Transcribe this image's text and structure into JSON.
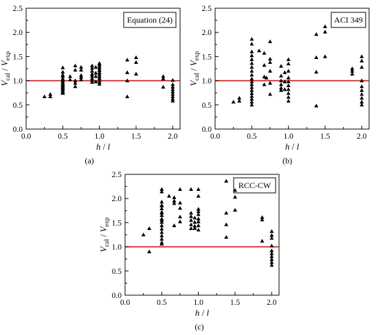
{
  "chart_data": [
    {
      "panel": "(a)",
      "type": "scatter",
      "legend_label": "Equation (24)",
      "xlabel": "h / l",
      "ylabel": "V_cal / V_exp",
      "ylabel_parts": {
        "v1": "V",
        "s1": "cal",
        "slash": " / ",
        "v2": "V",
        "s2": "exp"
      },
      "xlabel_parts": {
        "h": "h",
        "slash": " / ",
        "l": "l"
      },
      "xlim": [
        0,
        2.1
      ],
      "ylim": [
        0,
        2.5
      ],
      "xticks": [
        "0.0",
        "0.5",
        "1.0",
        "1.5",
        "2.0"
      ],
      "yticks": [
        "0.0",
        "0.5",
        "1.0",
        "1.5",
        "2.0",
        "2.5"
      ],
      "reference_line": {
        "y": 1.0,
        "color": "#ff0000"
      },
      "marker": "triangle",
      "marker_color": "#000000",
      "x": [
        0.25,
        0.33,
        0.33,
        0.5,
        0.5,
        0.5,
        0.5,
        0.5,
        0.5,
        0.5,
        0.5,
        0.5,
        0.5,
        0.5,
        0.5,
        0.5,
        0.5,
        0.5,
        0.5,
        0.5,
        0.5,
        0.6,
        0.6,
        0.67,
        0.67,
        0.67,
        0.67,
        0.67,
        0.75,
        0.75,
        0.75,
        0.75,
        0.75,
        0.9,
        0.9,
        0.9,
        0.9,
        0.9,
        0.9,
        0.9,
        0.9,
        0.95,
        0.95,
        0.95,
        0.95,
        1.0,
        1.0,
        1.0,
        1.0,
        1.0,
        1.0,
        1.0,
        1.0,
        1.0,
        1.0,
        1.0,
        1.0,
        1.38,
        1.38,
        1.38,
        1.38,
        1.5,
        1.5,
        1.5,
        1.87,
        1.87,
        1.87,
        2.0,
        2.0,
        2.0,
        2.0,
        2.0,
        2.0,
        2.0,
        2.0,
        2.0
      ],
      "y": [
        0.67,
        0.72,
        0.67,
        1.27,
        1.18,
        1.12,
        1.09,
        1.04,
        1.01,
        0.98,
        0.95,
        0.93,
        0.91,
        0.89,
        0.87,
        0.85,
        0.83,
        0.81,
        0.78,
        0.76,
        0.74,
        1.09,
        1.02,
        1.31,
        1.22,
        1.0,
        0.95,
        0.88,
        1.28,
        1.22,
        1.11,
        1.07,
        1.02,
        1.31,
        1.26,
        1.2,
        1.14,
        1.1,
        1.05,
        1.01,
        0.97,
        1.28,
        1.16,
        1.09,
        0.98,
        1.36,
        1.33,
        1.29,
        1.25,
        1.21,
        1.17,
        1.13,
        1.09,
        1.05,
        1.01,
        0.97,
        0.93,
        1.43,
        1.17,
        1.0,
        0.67,
        1.48,
        1.38,
        1.14,
        1.09,
        1.04,
        0.87,
        1.01,
        0.92,
        0.87,
        0.82,
        0.77,
        0.72,
        0.67,
        0.62,
        0.58
      ]
    },
    {
      "panel": "(b)",
      "type": "scatter",
      "legend_label": "ACI 349",
      "xlabel": "h / l",
      "ylabel": "V_cal / V_exp",
      "ylabel_parts": {
        "v1": "V",
        "s1": "cal",
        "slash": " / ",
        "v2": "V",
        "s2": "exp"
      },
      "xlabel_parts": {
        "h": "h",
        "slash": " / ",
        "l": "l"
      },
      "xlim": [
        0,
        2.1
      ],
      "ylim": [
        0,
        2.5
      ],
      "xticks": [
        "0.0",
        "0.5",
        "1.0",
        "1.5",
        "2.0"
      ],
      "yticks": [
        "0.0",
        "0.5",
        "1.0",
        "1.5",
        "2.0",
        "2.5"
      ],
      "reference_line": {
        "y": 1.0,
        "color": "#ff0000"
      },
      "marker": "triangle",
      "marker_color": "#000000",
      "x": [
        0.25,
        0.33,
        0.33,
        0.5,
        0.5,
        0.5,
        0.5,
        0.5,
        0.5,
        0.5,
        0.5,
        0.5,
        0.5,
        0.5,
        0.5,
        0.5,
        0.5,
        0.5,
        0.5,
        0.5,
        0.5,
        0.5,
        0.6,
        0.67,
        0.67,
        0.67,
        0.67,
        0.7,
        0.75,
        0.75,
        0.75,
        0.75,
        0.75,
        0.75,
        0.9,
        0.9,
        0.9,
        0.9,
        0.9,
        0.9,
        0.95,
        0.95,
        0.95,
        1.0,
        1.0,
        1.0,
        1.0,
        1.0,
        1.0,
        1.0,
        1.0,
        1.0,
        1.0,
        1.38,
        1.38,
        1.38,
        1.38,
        1.5,
        1.5,
        1.5,
        1.87,
        1.87,
        1.87,
        2.0,
        2.0,
        2.0,
        2.0,
        2.0,
        2.0,
        2.0,
        2.0,
        2.0,
        2.0
      ],
      "y": [
        0.56,
        0.58,
        0.64,
        1.86,
        1.76,
        1.6,
        1.52,
        1.44,
        1.36,
        1.28,
        1.2,
        1.12,
        1.04,
        0.98,
        0.92,
        0.86,
        0.8,
        0.74,
        0.68,
        0.62,
        0.56,
        0.5,
        1.62,
        1.57,
        1.32,
        1.08,
        0.92,
        1.06,
        1.81,
        1.45,
        1.38,
        1.2,
        0.95,
        0.72,
        1.3,
        1.1,
        1.0,
        0.92,
        0.85,
        0.8,
        1.17,
        0.98,
        0.82,
        1.44,
        1.35,
        1.2,
        1.06,
        0.98,
        0.9,
        0.82,
        0.74,
        0.66,
        0.58,
        1.96,
        1.48,
        1.18,
        0.48,
        2.12,
        2.01,
        1.5,
        1.25,
        1.2,
        1.14,
        1.5,
        1.41,
        1.28,
        1.0,
        0.88,
        0.8,
        0.72,
        0.64,
        0.56,
        0.5
      ]
    },
    {
      "panel": "(c)",
      "type": "scatter",
      "legend_label": "RCC-CW",
      "xlabel": "h / l",
      "ylabel": "V_cal / V_exp",
      "ylabel_parts": {
        "v1": "V",
        "s1": "cal",
        "slash": " / ",
        "v2": "V",
        "s2": "exp"
      },
      "xlabel_parts": {
        "h": "h",
        "slash": " / ",
        "l": "l"
      },
      "xlim": [
        0,
        2.1
      ],
      "ylim": [
        0,
        2.5
      ],
      "xticks": [
        "0.0",
        "0.5",
        "1.0",
        "1.5",
        "2.0"
      ],
      "yticks": [
        "0.0",
        "0.5",
        "1.0",
        "1.5",
        "2.0",
        "2.5"
      ],
      "reference_line": {
        "y": 1.0,
        "color": "#ff0000"
      },
      "marker": "triangle",
      "marker_color": "#000000",
      "x": [
        0.25,
        0.33,
        0.33,
        0.5,
        0.5,
        0.5,
        0.5,
        0.5,
        0.5,
        0.5,
        0.5,
        0.5,
        0.5,
        0.5,
        0.5,
        0.5,
        0.5,
        0.5,
        0.5,
        0.5,
        0.5,
        0.5,
        0.6,
        0.67,
        0.67,
        0.67,
        0.67,
        0.75,
        0.75,
        0.75,
        0.75,
        0.75,
        0.9,
        0.9,
        0.9,
        0.9,
        0.9,
        0.9,
        0.95,
        0.95,
        0.95,
        0.95,
        1.0,
        1.0,
        1.0,
        1.0,
        1.0,
        1.0,
        1.0,
        1.0,
        1.0,
        1.38,
        1.38,
        1.38,
        1.38,
        1.5,
        1.5,
        1.5,
        1.87,
        1.87,
        1.87,
        2.0,
        2.0,
        2.0,
        2.0,
        2.0,
        2.0,
        2.0,
        2.0,
        2.0,
        2.0
      ],
      "y": [
        1.25,
        1.38,
        0.9,
        2.19,
        2.14,
        1.93,
        1.86,
        1.79,
        1.72,
        1.65,
        1.58,
        1.51,
        1.44,
        1.37,
        1.3,
        1.23,
        1.16,
        1.09,
        1.85,
        1.7,
        1.55,
        1.06,
        2.05,
        2.02,
        1.95,
        1.9,
        1.44,
        2.19,
        1.91,
        1.8,
        1.62,
        1.52,
        2.19,
        1.7,
        1.63,
        1.55,
        1.46,
        1.38,
        1.6,
        1.51,
        1.43,
        1.38,
        2.19,
        2.05,
        1.78,
        1.73,
        1.67,
        1.58,
        1.52,
        1.44,
        1.35,
        2.36,
        1.7,
        1.46,
        1.2,
        2.17,
        1.76,
        2.03,
        1.61,
        1.56,
        1.12,
        1.32,
        1.24,
        1.18,
        1.02,
        0.92,
        0.86,
        0.8,
        0.74,
        0.68,
        0.62
      ]
    }
  ]
}
